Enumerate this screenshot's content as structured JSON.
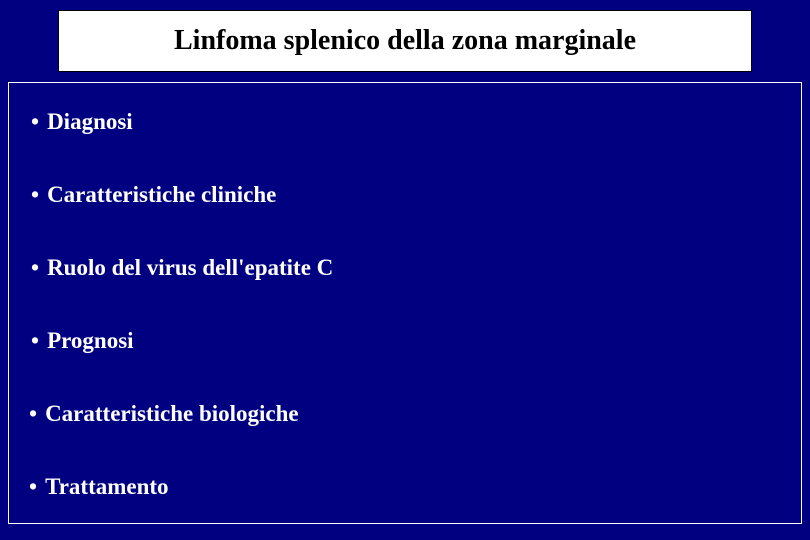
{
  "slide": {
    "title": "Linfoma splenico della zona marginale",
    "background_color": "#000080",
    "title_box": {
      "bg": "#ffffff",
      "text_color": "#000000",
      "border_color": "#000000",
      "font_size": 28,
      "font_weight": "bold"
    },
    "content_box": {
      "border_color": "#ffffff",
      "text_color": "#ffffff",
      "font_size": 23,
      "font_weight": "bold"
    },
    "bullets": [
      {
        "marker": "•",
        "text": "Diagnosi",
        "indent": true
      },
      {
        "marker": "•",
        "text": "Caratteristiche cliniche",
        "indent": true
      },
      {
        "marker": "•",
        "text": "Ruolo del virus dell'epatite C",
        "indent": true
      },
      {
        "marker": "•",
        "text": "Prognosi",
        "indent": true
      },
      {
        "marker": "•",
        "text": "Caratteristiche biologiche",
        "indent": false
      },
      {
        "marker": "•",
        "text": "Trattamento",
        "indent": false
      }
    ]
  }
}
